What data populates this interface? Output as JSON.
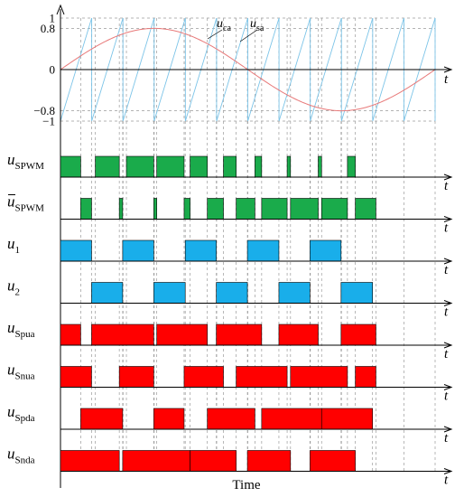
{
  "colors": {
    "green": "#1aab4b",
    "blue": "#19aeea",
    "red": "#ff0000",
    "carrier": "#7cc4e8",
    "sine": "#e87a7a",
    "grid": "#9a9a9a"
  },
  "top_panel": {
    "ticks": [
      {
        "value": 1,
        "label": "1"
      },
      {
        "value": 0.8,
        "label": "0.8"
      },
      {
        "value": 0,
        "label": "0"
      },
      {
        "value": -0.8,
        "label": "−0.8"
      },
      {
        "value": -1,
        "label": "−1"
      }
    ],
    "curves": {
      "carrier": {
        "main": "u",
        "sub": "ca"
      },
      "sine": {
        "main": "u",
        "sub": "sa"
      }
    },
    "modulation_index": 0.8,
    "carrier_periods": 12
  },
  "axis_t_label": "t",
  "x_label": "Time",
  "signals": [
    {
      "id": "spwm",
      "main": "u",
      "sub": "SPWM",
      "overline": false,
      "color": "green",
      "pulses": [
        [
          0.0,
          0.054
        ],
        [
          0.093,
          0.157
        ],
        [
          0.176,
          0.249
        ],
        [
          0.257,
          0.33
        ],
        [
          0.346,
          0.392
        ],
        [
          0.435,
          0.469
        ],
        [
          0.519,
          0.537
        ],
        [
          0.605,
          0.614
        ],
        [
          0.688,
          0.697
        ],
        [
          0.766,
          0.787
        ]
      ]
    },
    {
      "id": "spwm_bar",
      "main": "u",
      "sub": "SPWM",
      "overline": true,
      "color": "green",
      "pulses": [
        [
          0.054,
          0.083
        ],
        [
          0.157,
          0.166
        ],
        [
          0.249,
          0.257
        ],
        [
          0.33,
          0.346
        ],
        [
          0.392,
          0.435
        ],
        [
          0.469,
          0.519
        ],
        [
          0.537,
          0.605
        ],
        [
          0.614,
          0.688
        ],
        [
          0.697,
          0.766
        ],
        [
          0.787,
          0.842
        ]
      ]
    },
    {
      "id": "u1",
      "main": "u",
      "sub": "1",
      "overline": false,
      "color": "blue",
      "pulses": [
        [
          0.0,
          0.083
        ],
        [
          0.166,
          0.249
        ],
        [
          0.333,
          0.416
        ],
        [
          0.499,
          0.583
        ],
        [
          0.666,
          0.749
        ]
      ]
    },
    {
      "id": "u2",
      "main": "u",
      "sub": "2",
      "overline": false,
      "color": "blue",
      "pulses": [
        [
          0.083,
          0.166
        ],
        [
          0.249,
          0.333
        ],
        [
          0.416,
          0.499
        ],
        [
          0.583,
          0.666
        ],
        [
          0.749,
          0.833
        ]
      ]
    },
    {
      "id": "spua",
      "main": "u",
      "sub": "Spua",
      "overline": false,
      "color": "red",
      "pulses": [
        [
          0.0,
          0.054
        ],
        [
          0.083,
          0.249
        ],
        [
          0.257,
          0.392
        ],
        [
          0.416,
          0.537
        ],
        [
          0.583,
          0.688
        ],
        [
          0.749,
          0.842
        ]
      ]
    },
    {
      "id": "snua",
      "main": "u",
      "sub": "Snua",
      "overline": false,
      "color": "red",
      "pulses": [
        [
          0.0,
          0.083
        ],
        [
          0.157,
          0.249
        ],
        [
          0.33,
          0.435
        ],
        [
          0.469,
          0.605
        ],
        [
          0.614,
          0.766
        ],
        [
          0.787,
          0.842
        ]
      ]
    },
    {
      "id": "spda",
      "main": "u",
      "sub": "Spda",
      "overline": false,
      "color": "red",
      "pulses": [
        [
          0.054,
          0.166
        ],
        [
          0.249,
          0.33
        ],
        [
          0.392,
          0.519
        ],
        [
          0.537,
          0.697
        ],
        [
          0.697,
          0.833
        ]
      ]
    },
    {
      "id": "snda",
      "main": "u",
      "sub": "Snda",
      "overline": false,
      "color": "red",
      "pulses": [
        [
          0.0,
          0.157
        ],
        [
          0.166,
          0.346
        ],
        [
          0.346,
          0.469
        ],
        [
          0.499,
          0.614
        ],
        [
          0.666,
          0.787
        ]
      ]
    }
  ]
}
